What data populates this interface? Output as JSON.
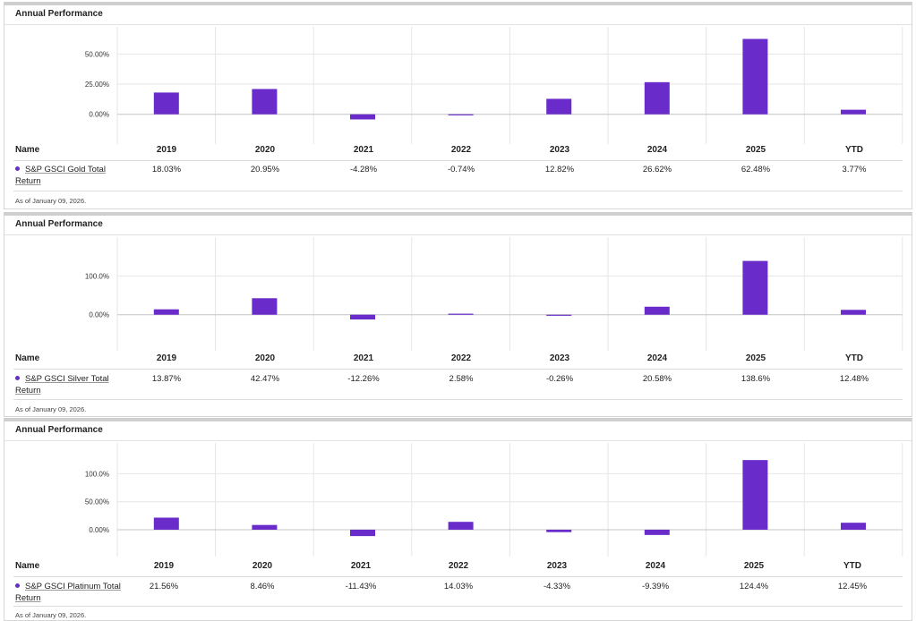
{
  "colors": {
    "bar": "#6a2bcb",
    "grid": "#e6e6e6",
    "zero": "#c4c4c4"
  },
  "name_header": "Name",
  "chart_data": [
    {
      "type": "bar",
      "panel_title": "Annual Performance",
      "series_name": "S&P GSCI Gold Total Return",
      "categories": [
        "2019",
        "2020",
        "2021",
        "2022",
        "2023",
        "2024",
        "2025",
        "YTD"
      ],
      "values": [
        18.03,
        20.95,
        -4.28,
        -0.74,
        12.82,
        26.62,
        62.48,
        3.77
      ],
      "value_labels": [
        "18.03%",
        "20.95%",
        "-4.28%",
        "-0.74%",
        "12.82%",
        "26.62%",
        "62.48%",
        "3.77%"
      ],
      "yticks": [
        0,
        25,
        50
      ],
      "ytick_labels": [
        "0.00%",
        "25.00%",
        "50.00%"
      ],
      "ylim": [
        -24.7,
        72.5
      ],
      "as_of": "As of January 09, 2026."
    },
    {
      "type": "bar",
      "panel_title": "Annual Performance",
      "series_name": "S&P GSCI Silver Total Return",
      "categories": [
        "2019",
        "2020",
        "2021",
        "2022",
        "2023",
        "2024",
        "2025",
        "YTD"
      ],
      "values": [
        13.87,
        42.47,
        -12.26,
        2.58,
        -0.26,
        20.58,
        138.6,
        12.48
      ],
      "value_labels": [
        "13.87%",
        "42.47%",
        "-12.26%",
        "2.58%",
        "-0.26%",
        "20.58%",
        "138.6%",
        "12.48%"
      ],
      "yticks": [
        0,
        100
      ],
      "ytick_labels": [
        "0.00%",
        "100.0%"
      ],
      "ylim": [
        -93,
        200
      ],
      "as_of": "As of January 09, 2026."
    },
    {
      "type": "bar",
      "panel_title": "Annual Performance",
      "series_name": "S&P GSCI Platinum Total Return",
      "categories": [
        "2019",
        "2020",
        "2021",
        "2022",
        "2023",
        "2024",
        "2025",
        "YTD"
      ],
      "values": [
        21.56,
        8.46,
        -11.43,
        14.03,
        -4.33,
        -9.39,
        124.4,
        12.45
      ],
      "value_labels": [
        "21.56%",
        "8.46%",
        "-11.43%",
        "14.03%",
        "-4.33%",
        "-9.39%",
        "124.4%",
        "12.45%"
      ],
      "yticks": [
        0,
        50,
        100
      ],
      "ytick_labels": [
        "0.00%",
        "50.00%",
        "100.0%"
      ],
      "ylim": [
        -48,
        155
      ],
      "as_of": "As of January 09, 2026."
    }
  ]
}
